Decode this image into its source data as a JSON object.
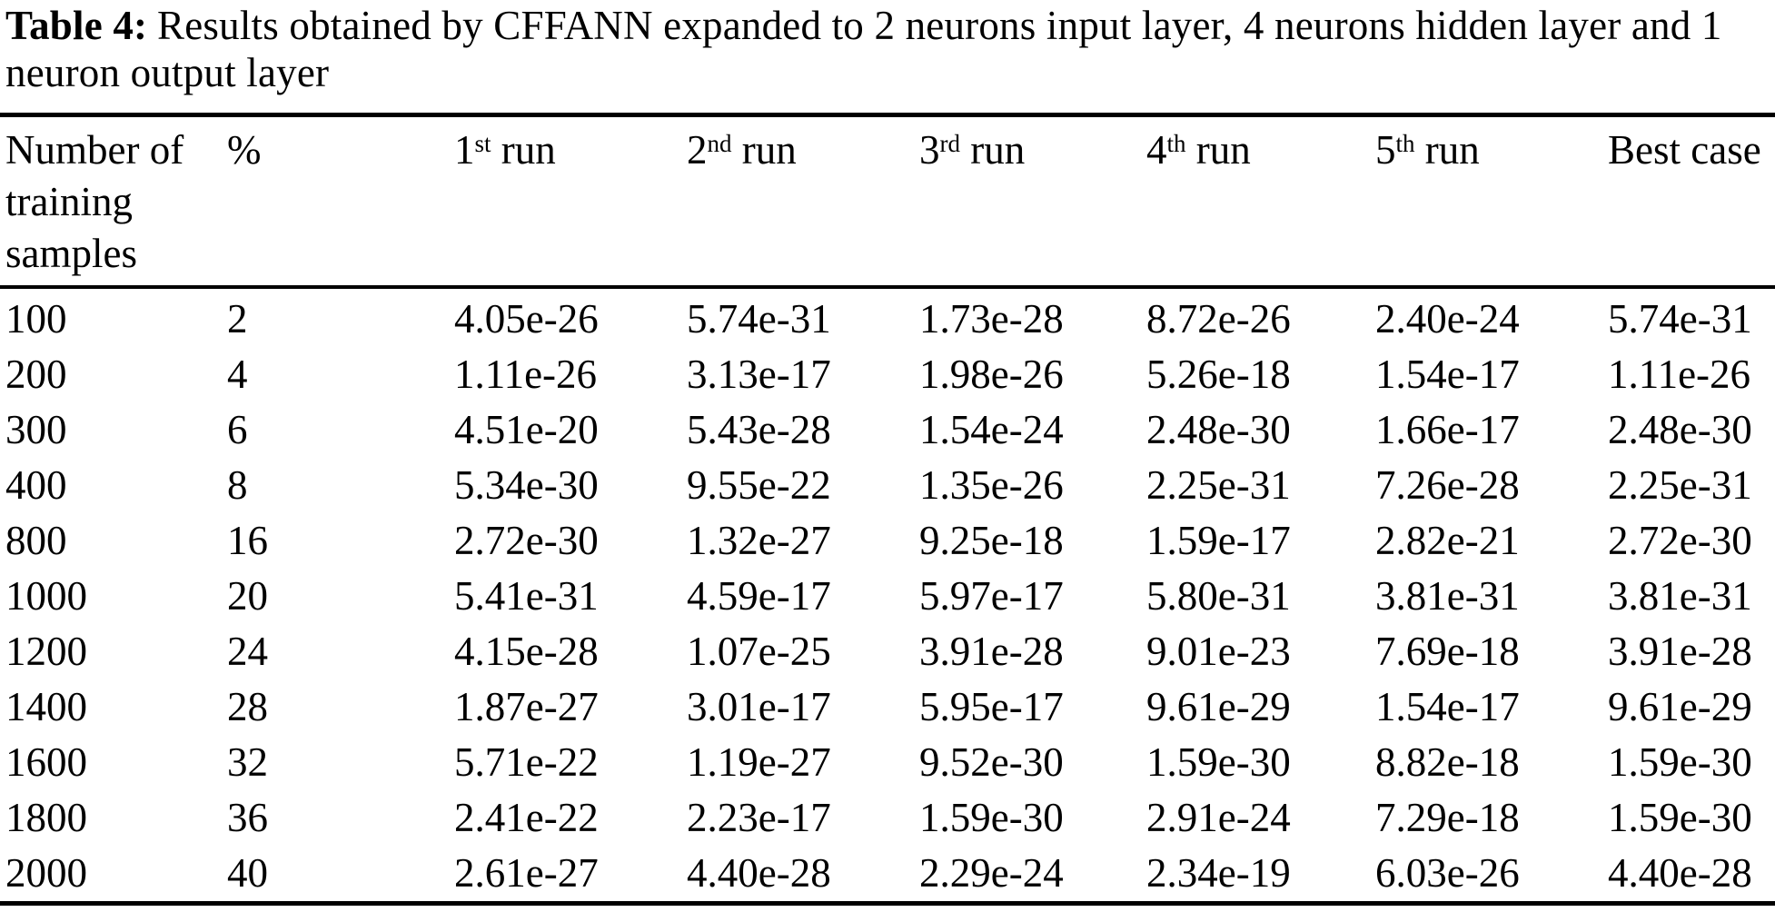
{
  "caption": {
    "label": "Table 4:",
    "text": "Results obtained by CFFANN expanded to 2 neurons input layer, 4 neurons hidden layer and 1 neuron output layer"
  },
  "table": {
    "headers": [
      {
        "main": "Number of training samples",
        "sup": "",
        "suffix": ""
      },
      {
        "main": "%",
        "sup": "",
        "suffix": ""
      },
      {
        "main": "1",
        "sup": "st",
        "suffix": " run"
      },
      {
        "main": "2",
        "sup": "nd",
        "suffix": " run"
      },
      {
        "main": "3",
        "sup": "rd",
        "suffix": " run"
      },
      {
        "main": "4",
        "sup": "th",
        "suffix": " run"
      },
      {
        "main": "5",
        "sup": "th",
        "suffix": " run"
      },
      {
        "main": "Best case",
        "sup": "",
        "suffix": ""
      }
    ],
    "rows": [
      [
        "100",
        "2",
        "4.05e-26",
        "5.74e-31",
        "1.73e-28",
        "8.72e-26",
        "2.40e-24",
        "5.74e-31"
      ],
      [
        "200",
        "4",
        "1.11e-26",
        "3.13e-17",
        "1.98e-26",
        "5.26e-18",
        "1.54e-17",
        "1.11e-26"
      ],
      [
        "300",
        "6",
        "4.51e-20",
        "5.43e-28",
        "1.54e-24",
        "2.48e-30",
        "1.66e-17",
        "2.48e-30"
      ],
      [
        "400",
        "8",
        "5.34e-30",
        "9.55e-22",
        "1.35e-26",
        "2.25e-31",
        "7.26e-28",
        "2.25e-31"
      ],
      [
        "800",
        "16",
        "2.72e-30",
        "1.32e-27",
        "9.25e-18",
        "1.59e-17",
        "2.82e-21",
        "2.72e-30"
      ],
      [
        "1000",
        "20",
        "5.41e-31",
        "4.59e-17",
        "5.97e-17",
        "5.80e-31",
        "3.81e-31",
        "3.81e-31"
      ],
      [
        "1200",
        "24",
        "4.15e-28",
        "1.07e-25",
        "3.91e-28",
        "9.01e-23",
        "7.69e-18",
        "3.91e-28"
      ],
      [
        "1400",
        "28",
        "1.87e-27",
        "3.01e-17",
        "5.95e-17",
        "9.61e-29",
        "1.54e-17",
        "9.61e-29"
      ],
      [
        "1600",
        "32",
        "5.71e-22",
        "1.19e-27",
        "9.52e-30",
        "1.59e-30",
        "8.82e-18",
        "1.59e-30"
      ],
      [
        "1800",
        "36",
        "2.41e-22",
        "2.23e-17",
        "1.59e-30",
        "2.91e-24",
        "7.29e-18",
        "1.59e-30"
      ],
      [
        "2000",
        "40",
        "2.61e-27",
        "4.40e-28",
        "2.29e-24",
        "2.34e-19",
        "6.03e-26",
        "4.40e-28"
      ]
    ]
  }
}
